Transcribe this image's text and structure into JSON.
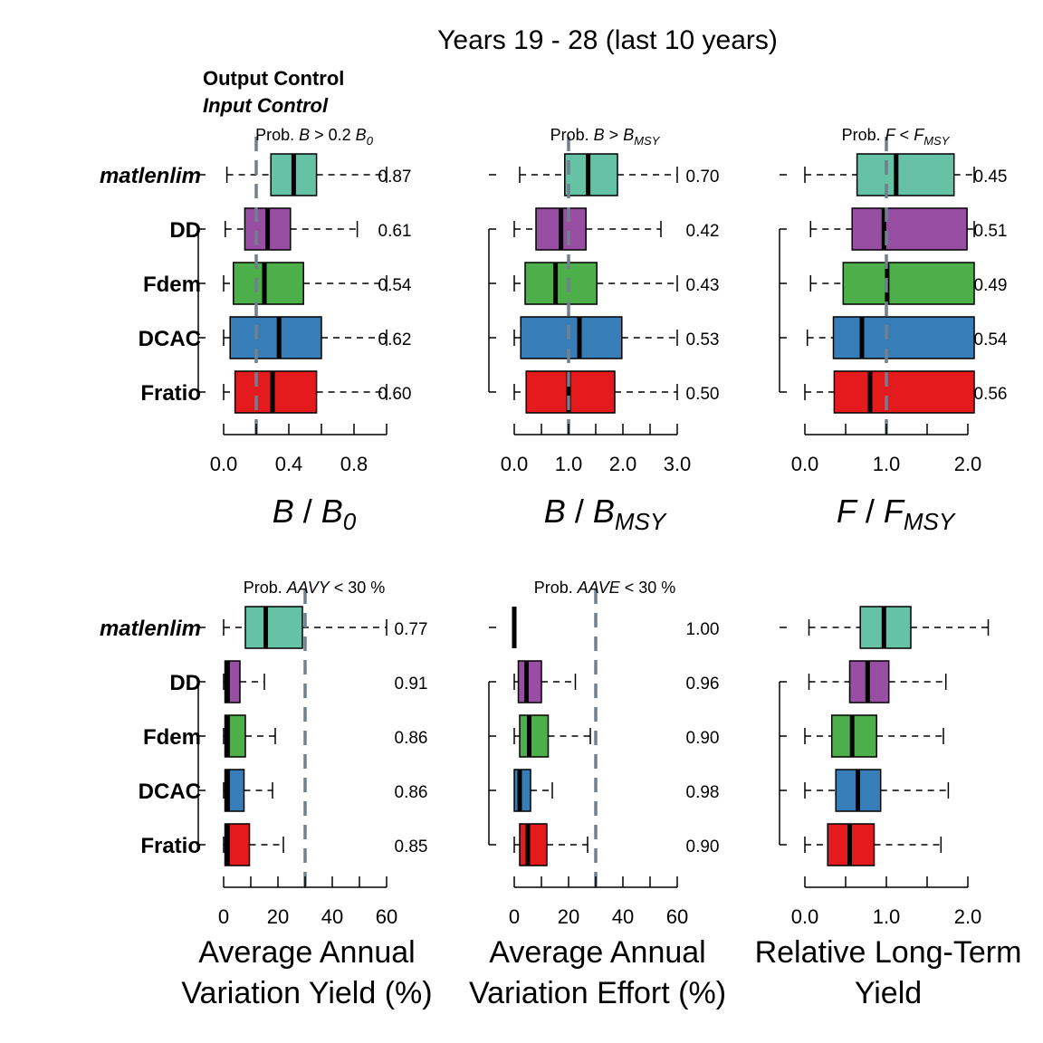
{
  "title": "Years 19 - 28 (last 10 years)",
  "legend": {
    "output": "Output Control",
    "input": "Input Control"
  },
  "methods": [
    "matlenlim",
    "DD",
    "Fdem",
    "DCAC",
    "Fratio"
  ],
  "colors": {
    "matlenlim": "#66C2A5",
    "DD": "#984EA3",
    "Fdem": "#4DAF4A",
    "DCAC": "#377EB8",
    "Fratio": "#E41A1C",
    "refline": "#708090"
  },
  "chart_data": [
    {
      "type": "box",
      "id": "bb0",
      "prob_label": {
        "pre": "Prob. ",
        "sym": "B",
        "mid": " > 0.2 ",
        "sym2": "B",
        "sub": "0"
      },
      "xlabel": {
        "main": "B",
        "sep": " / ",
        "main2": "B",
        "sub": "0"
      },
      "xlim": [
        0,
        1.0
      ],
      "ticks": [
        0.0,
        0.4,
        0.8
      ],
      "minor": [
        0.2,
        0.6,
        1.0
      ],
      "tick_labels": [
        "0.0",
        "0.4",
        "0.8"
      ],
      "refline": 0.2,
      "clip_right": false,
      "boxes": [
        {
          "method": "matlenlim",
          "whisk_lo": 0.02,
          "q1": 0.29,
          "median": 0.43,
          "q3": 0.57,
          "whisk_hi": 1.0,
          "prob": "0.87"
        },
        {
          "method": "DD",
          "whisk_lo": 0.01,
          "q1": 0.13,
          "median": 0.27,
          "q3": 0.41,
          "whisk_hi": 0.82,
          "prob": "0.61"
        },
        {
          "method": "Fdem",
          "whisk_lo": 0.0,
          "q1": 0.06,
          "median": 0.25,
          "q3": 0.49,
          "whisk_hi": 1.0,
          "prob": "0.54"
        },
        {
          "method": "DCAC",
          "whisk_lo": 0.0,
          "q1": 0.04,
          "median": 0.34,
          "q3": 0.6,
          "whisk_hi": 1.0,
          "prob": "0.62"
        },
        {
          "method": "Fratio",
          "whisk_lo": 0.0,
          "q1": 0.07,
          "median": 0.3,
          "q3": 0.57,
          "whisk_hi": 1.0,
          "prob": "0.60"
        }
      ]
    },
    {
      "type": "box",
      "id": "bbmsy",
      "prob_label": {
        "pre": "Prob. ",
        "sym": "B",
        "mid": " > ",
        "sym2": "B",
        "sub": "MSY"
      },
      "xlabel": {
        "main": "B",
        "sep": " / ",
        "main2": "B",
        "sub": "MSY"
      },
      "xlim": [
        0,
        3.0
      ],
      "ticks": [
        0.0,
        1.0,
        2.0,
        3.0
      ],
      "minor": [
        0.5,
        1.5,
        2.5
      ],
      "tick_labels": [
        "0.0",
        "1.0",
        "2.0",
        "3.0"
      ],
      "refline": 1.0,
      "clip_right": false,
      "boxes": [
        {
          "method": "matlenlim",
          "whisk_lo": 0.1,
          "q1": 0.93,
          "median": 1.36,
          "q3": 1.9,
          "whisk_hi": 3.0,
          "prob": "0.70"
        },
        {
          "method": "DD",
          "whisk_lo": 0.0,
          "q1": 0.4,
          "median": 0.86,
          "q3": 1.32,
          "whisk_hi": 2.7,
          "prob": "0.42"
        },
        {
          "method": "Fdem",
          "whisk_lo": 0.0,
          "q1": 0.2,
          "median": 0.76,
          "q3": 1.52,
          "whisk_hi": 3.0,
          "prob": "0.43"
        },
        {
          "method": "DCAC",
          "whisk_lo": 0.0,
          "q1": 0.12,
          "median": 1.2,
          "q3": 1.98,
          "whisk_hi": 3.0,
          "prob": "0.53"
        },
        {
          "method": "Fratio",
          "whisk_lo": 0.0,
          "q1": 0.22,
          "median": 1.0,
          "q3": 1.85,
          "whisk_hi": 3.0,
          "prob": "0.50"
        }
      ]
    },
    {
      "type": "box",
      "id": "ffmsy",
      "prob_label": {
        "pre": "Prob. ",
        "sym": "F",
        "mid": " < ",
        "sym2": "F",
        "sub": "MSY"
      },
      "xlabel": {
        "main": "F",
        "sep": " / ",
        "main2": "F",
        "sub": "MSY"
      },
      "xlim": [
        0,
        2.0
      ],
      "ticks": [
        0.0,
        1.0,
        2.0
      ],
      "minor": [
        0.5,
        1.5
      ],
      "tick_labels": [
        "0.0",
        "1.0",
        "2.0"
      ],
      "refline": 1.0,
      "clip_right": true,
      "boxes": [
        {
          "method": "matlenlim",
          "whisk_lo": 0.0,
          "q1": 0.64,
          "median": 1.12,
          "q3": 1.83,
          "whisk_hi": 2.2,
          "prob": "0.45"
        },
        {
          "method": "DD",
          "whisk_lo": 0.07,
          "q1": 0.58,
          "median": 0.97,
          "q3": 1.99,
          "whisk_hi": 2.2,
          "prob": "0.51"
        },
        {
          "method": "Fdem",
          "whisk_lo": 0.07,
          "q1": 0.47,
          "median": 1.01,
          "q3": 2.2,
          "whisk_hi": 2.2,
          "prob": "0.49"
        },
        {
          "method": "DCAC",
          "whisk_lo": 0.03,
          "q1": 0.35,
          "median": 0.7,
          "q3": 2.2,
          "whisk_hi": 2.2,
          "prob": "0.54"
        },
        {
          "method": "Fratio",
          "whisk_lo": 0.0,
          "q1": 0.36,
          "median": 0.8,
          "q3": 2.2,
          "whisk_hi": 2.2,
          "prob": "0.56"
        }
      ]
    },
    {
      "type": "box",
      "id": "aavy",
      "prob_label": {
        "pre": "Prob. ",
        "sym": "AAVY",
        "mid": " < 30 %",
        "sym2": "",
        "sub": ""
      },
      "xlabel": {
        "line1": "Average Annual",
        "line2": "Variation Yield (%)"
      },
      "xlim": [
        0,
        60
      ],
      "ticks": [
        0,
        20,
        40,
        60
      ],
      "minor": [
        10,
        30,
        50
      ],
      "tick_labels": [
        "0",
        "20",
        "40",
        "60"
      ],
      "refline": 30,
      "clip_right": false,
      "boxes": [
        {
          "method": "matlenlim",
          "whisk_lo": 0,
          "q1": 8,
          "median": 15.5,
          "q3": 29,
          "whisk_hi": 60,
          "prob": "0.77"
        },
        {
          "method": "DD",
          "whisk_lo": 0,
          "q1": 0.5,
          "median": 1.5,
          "q3": 6,
          "whisk_hi": 15,
          "prob": "0.91"
        },
        {
          "method": "Fdem",
          "whisk_lo": 0,
          "q1": 0.5,
          "median": 1.5,
          "q3": 8,
          "whisk_hi": 19,
          "prob": "0.86"
        },
        {
          "method": "DCAC",
          "whisk_lo": 0,
          "q1": 0.5,
          "median": 1.5,
          "q3": 7.5,
          "whisk_hi": 18,
          "prob": "0.86"
        },
        {
          "method": "Fratio",
          "whisk_lo": 0,
          "q1": 0.5,
          "median": 1.5,
          "q3": 9.5,
          "whisk_hi": 22,
          "prob": "0.85"
        }
      ]
    },
    {
      "type": "box",
      "id": "aave",
      "prob_label": {
        "pre": "Prob. ",
        "sym": "AAVE",
        "mid": " < 30 %",
        "sym2": "",
        "sub": ""
      },
      "xlabel": {
        "line1": "Average Annual",
        "line2": "Variation Effort (%)"
      },
      "xlim": [
        0,
        60
      ],
      "ticks": [
        0,
        20,
        40,
        60
      ],
      "minor": [
        10,
        30,
        50
      ],
      "tick_labels": [
        "0",
        "20",
        "40",
        "60"
      ],
      "refline": 30,
      "clip_right": false,
      "boxes": [
        {
          "method": "matlenlim",
          "whisk_lo": 0,
          "q1": 0,
          "median": 0,
          "q3": 0,
          "whisk_hi": 0,
          "prob": "1.00"
        },
        {
          "method": "DD",
          "whisk_lo": 0,
          "q1": 1.5,
          "median": 4.5,
          "q3": 10,
          "whisk_hi": 22.5,
          "prob": "0.96"
        },
        {
          "method": "Fdem",
          "whisk_lo": 0,
          "q1": 2,
          "median": 5.5,
          "q3": 12.5,
          "whisk_hi": 28,
          "prob": "0.90"
        },
        {
          "method": "DCAC",
          "whisk_lo": 0,
          "q1": 0,
          "median": 2,
          "q3": 6,
          "whisk_hi": 14,
          "prob": "0.98"
        },
        {
          "method": "Fratio",
          "whisk_lo": 0,
          "q1": 2,
          "median": 5,
          "q3": 12,
          "whisk_hi": 27,
          "prob": "0.90"
        }
      ]
    },
    {
      "type": "box",
      "id": "ltyield",
      "prob_label": null,
      "xlabel": {
        "line1": "Relative Long-Term",
        "line2": "Yield"
      },
      "xlim": [
        0,
        2.0
      ],
      "ticks": [
        0.0,
        1.0,
        2.0
      ],
      "minor": [
        0.5,
        1.5
      ],
      "tick_labels": [
        "0.0",
        "1.0",
        "2.0"
      ],
      "refline": null,
      "clip_right": false,
      "boxes": [
        {
          "method": "matlenlim",
          "whisk_lo": 0.05,
          "q1": 0.68,
          "median": 0.97,
          "q3": 1.3,
          "whisk_hi": 2.25,
          "prob": ""
        },
        {
          "method": "DD",
          "whisk_lo": 0.05,
          "q1": 0.55,
          "median": 0.77,
          "q3": 1.03,
          "whisk_hi": 1.73,
          "prob": ""
        },
        {
          "method": "Fdem",
          "whisk_lo": 0.0,
          "q1": 0.33,
          "median": 0.58,
          "q3": 0.88,
          "whisk_hi": 1.7,
          "prob": ""
        },
        {
          "method": "DCAC",
          "whisk_lo": 0.0,
          "q1": 0.38,
          "median": 0.65,
          "q3": 0.93,
          "whisk_hi": 1.76,
          "prob": ""
        },
        {
          "method": "Fratio",
          "whisk_lo": 0.0,
          "q1": 0.28,
          "median": 0.55,
          "q3": 0.85,
          "whisk_hi": 1.67,
          "prob": ""
        }
      ]
    }
  ]
}
